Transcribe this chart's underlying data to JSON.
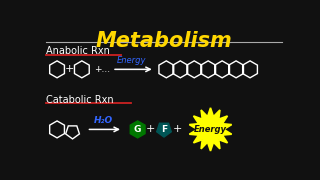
{
  "title": "Metabolism",
  "title_color": "#FFD700",
  "bg_color": "#111111",
  "anabolic_label": "Anabolic Rxn",
  "catabolic_label": "Catabolic Rxn",
  "label_color": "#FFFFFF",
  "underline_color": "#CC2222",
  "energy_color": "#3366FF",
  "h2o_color": "#3366FF",
  "shape_color": "#FFFFFF",
  "g_color": "#007700",
  "f_color": "#005555",
  "starburst_color": "#FFFF00",
  "energy_text_color": "#111111",
  "title_underline_color": "#AAAAAA"
}
